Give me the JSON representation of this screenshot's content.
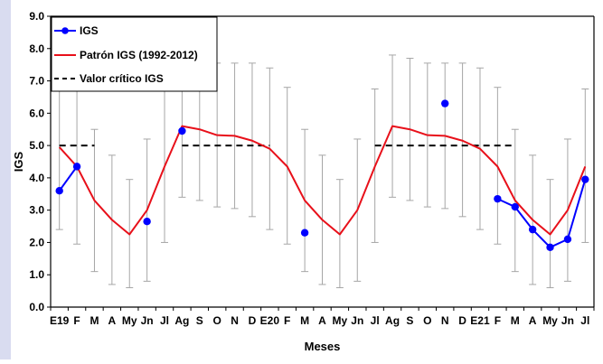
{
  "chart_data": {
    "type": "line",
    "xlabel": "Meses",
    "ylabel": "IGS",
    "ylim": [
      0,
      9
    ],
    "yticks": [
      "0.0",
      "1.0",
      "2.0",
      "3.0",
      "4.0",
      "5.0",
      "6.0",
      "7.0",
      "8.0",
      "9.0"
    ],
    "categories": [
      "E19",
      "F",
      "M",
      "A",
      "My",
      "Jn",
      "Jl",
      "Ag",
      "S",
      "O",
      "N",
      "D",
      "E20",
      "F",
      "M",
      "A",
      "My",
      "Jn",
      "Jl",
      "Ag",
      "S",
      "O",
      "N",
      "D",
      "E21",
      "F",
      "M",
      "A",
      "My",
      "Jn",
      "Jl"
    ],
    "grid": false,
    "legend_position": "top-left",
    "series": [
      {
        "name": "IGS",
        "color": "#0000ff",
        "style": "points-with-lines",
        "values": [
          3.6,
          4.35,
          null,
          null,
          null,
          2.65,
          null,
          5.45,
          null,
          null,
          null,
          null,
          null,
          null,
          2.3,
          null,
          null,
          null,
          null,
          null,
          null,
          null,
          6.3,
          null,
          null,
          3.35,
          3.1,
          2.4,
          1.85,
          2.1,
          3.95
        ]
      },
      {
        "name": "Patrón IGS (1992-2012)",
        "color": "#e8101a",
        "style": "line",
        "values": [
          4.95,
          4.35,
          3.3,
          2.7,
          2.25,
          3.0,
          4.35,
          5.6,
          5.5,
          5.32,
          5.3,
          5.15,
          4.9,
          4.35,
          3.3,
          2.7,
          2.25,
          3.0,
          4.35,
          5.6,
          5.5,
          5.32,
          5.3,
          5.15,
          4.9,
          4.35,
          3.3,
          2.7,
          2.25,
          3.0,
          4.35
        ],
        "error_bars": [
          [
            2.4,
            7.5
          ],
          [
            1.95,
            6.8
          ],
          [
            1.1,
            5.5
          ],
          [
            0.7,
            4.7
          ],
          [
            0.6,
            3.95
          ],
          [
            0.8,
            5.2
          ],
          [
            2.0,
            6.75
          ],
          [
            3.4,
            7.8
          ],
          [
            3.3,
            7.7
          ],
          [
            3.1,
            7.55
          ],
          [
            3.05,
            7.55
          ],
          [
            2.8,
            7.55
          ],
          [
            2.4,
            7.4
          ],
          [
            1.95,
            6.8
          ],
          [
            1.1,
            5.5
          ],
          [
            0.7,
            4.7
          ],
          [
            0.6,
            3.95
          ],
          [
            0.8,
            5.2
          ],
          [
            2.0,
            6.75
          ],
          [
            3.4,
            7.8
          ],
          [
            3.3,
            7.7
          ],
          [
            3.1,
            7.55
          ],
          [
            3.05,
            7.55
          ],
          [
            2.8,
            7.55
          ],
          [
            2.4,
            7.4
          ],
          [
            1.95,
            6.8
          ],
          [
            1.1,
            5.5
          ],
          [
            0.7,
            4.7
          ],
          [
            0.6,
            3.95
          ],
          [
            0.8,
            5.2
          ],
          [
            2.0,
            6.75
          ]
        ]
      },
      {
        "name": "Valor crítico IGS",
        "color": "#000000",
        "style": "dashed",
        "segments": [
          {
            "from": "E19",
            "to": "M",
            "value": 5.0
          },
          {
            "from": "Ag",
            "to": "E20",
            "value": 5.0
          },
          {
            "from": "Jl",
            "to": "M",
            "value": 5.0
          }
        ]
      }
    ],
    "error_bar_color": "#a6a6a6"
  }
}
